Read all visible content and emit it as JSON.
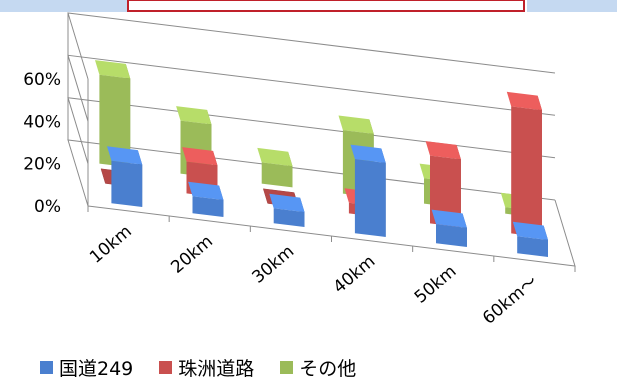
{
  "chart_data": {
    "type": "bar",
    "subtype": "3d-column",
    "categories": [
      "10km",
      "20km",
      "30km",
      "40km",
      "50km",
      "60km～"
    ],
    "series": [
      {
        "name": "国道249",
        "color": "#4a7fcf",
        "values": [
          20,
          8,
          7,
          35,
          9,
          8
        ]
      },
      {
        "name": "珠洲道路",
        "color": "#c9504f",
        "values": [
          0,
          15,
          0,
          5,
          32,
          60
        ]
      },
      {
        "name": "その他",
        "color": "#9bbb59",
        "values": [
          42,
          25,
          10,
          30,
          12,
          3
        ]
      }
    ],
    "yticks": [
      "0%",
      "20%",
      "40%",
      "60%"
    ],
    "ylim": [
      0,
      60
    ],
    "grid": true,
    "legend_position": "bottom-left"
  },
  "top_strip": {
    "left_color": "#c5d9f1",
    "center_border_color": "#c0202a",
    "right_color": "#c5d9f1"
  }
}
